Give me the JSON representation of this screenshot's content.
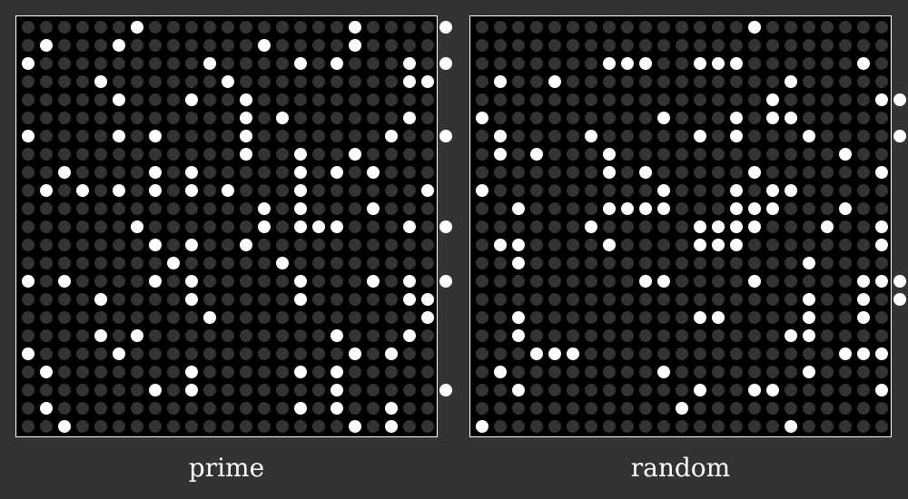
{
  "colors": {
    "background": "#333333",
    "panel": "#000000",
    "dot_off": "#333333",
    "dot_on": "#ffffff",
    "border": "#ffffff"
  },
  "panels": [
    {
      "label": "prime",
      "rows": [
        "000000100000000000100001",
        "010001000000010000100000",
        "100000000010000101000101",
        "000010000001000000000110",
        "000001000100100000000000",
        "000000000000101000000100",
        "100001010000100000001001",
        "000000000000100100100000",
        "001000010100000101010000",
        "010101010101000100000010",
        "000000000000010100010000",
        "000000100000010111000101",
        "000000010100100000000000",
        "000000001000001000000000",
        "101000010100000100010101",
        "000010000100000100000110",
        "000000000010000000000010",
        "000010100000000001000100",
        "100001000000000000101000",
        "010000000100000101000000",
        "000000010100000001000001",
        "010000000000000101001000",
        "001000000000000000101000"
      ]
    },
    {
      "label": "random",
      "rows": [
        "000000000000000100000000",
        "000000000000000000000000",
        "000000011100111000000100",
        "010010000000000001000000",
        "000000000000000010000011",
        "100000000010001011000000",
        "010000100000101000100001",
        "010100010000000000001000",
        "000000010100000100000010",
        "100000000010001011000000",
        "001000011110001110001000",
        "000000100000111100010010",
        "011000010000111000000010",
        "001000000000000000100000",
        "000000000110000100000111",
        "000000000000000000100101",
        "001000000000110000100100",
        "001000000000000001100000",
        "000111000000000000001110",
        "010000000010000000100000",
        "001000000000100110000010",
        "000000000001000000000000",
        "100000000000000001000000"
      ]
    }
  ]
}
